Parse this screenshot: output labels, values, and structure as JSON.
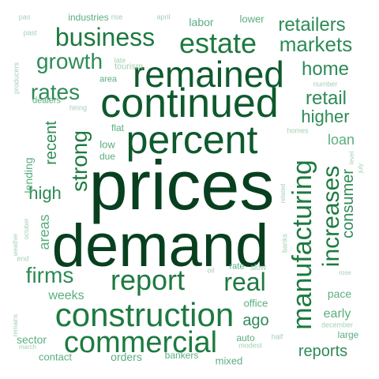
{
  "palette": {
    "darkest": "#08401f",
    "dark": "#0e5a2d",
    "mid": "#1d7a40",
    "medium": "#2e8b57",
    "light": "#5aae7f",
    "pale": "#a3d0b4"
  },
  "words": [
    {
      "text": "prices",
      "color": "darkest",
      "rot": 0
    },
    {
      "text": "demand",
      "color": "darkest",
      "rot": 0
    },
    {
      "text": "continued",
      "color": "dark",
      "rot": 0
    },
    {
      "text": "percent",
      "color": "dark",
      "rot": 0
    },
    {
      "text": "remained",
      "color": "dark",
      "rot": 0
    },
    {
      "text": "construction",
      "color": "mid",
      "rot": 0
    },
    {
      "text": "commercial",
      "color": "mid",
      "rot": 0
    },
    {
      "text": "manufacturing",
      "color": "mid",
      "rot": -90
    },
    {
      "text": "report",
      "color": "mid",
      "rot": 0
    },
    {
      "text": "estate",
      "color": "mid",
      "rot": 0
    },
    {
      "text": "strong",
      "color": "mid",
      "rot": -90
    },
    {
      "text": "business",
      "color": "mid",
      "rot": 0
    },
    {
      "text": "increases",
      "color": "mid",
      "rot": -90
    },
    {
      "text": "real",
      "color": "mid",
      "rot": 0
    },
    {
      "text": "growth",
      "color": "medium",
      "rot": 0
    },
    {
      "text": "firms",
      "color": "medium",
      "rot": 0
    },
    {
      "text": "rates",
      "color": "medium",
      "rot": 0
    },
    {
      "text": "markets",
      "color": "medium",
      "rot": 0
    },
    {
      "text": "retailers",
      "color": "medium",
      "rot": 0
    },
    {
      "text": "home",
      "color": "medium",
      "rot": 0
    },
    {
      "text": "retail",
      "color": "medium",
      "rot": 0
    },
    {
      "text": "higher",
      "color": "medium",
      "rot": 0
    },
    {
      "text": "consumer",
      "color": "medium",
      "rot": -90
    },
    {
      "text": "recent",
      "color": "medium",
      "rot": -90
    },
    {
      "text": "high",
      "color": "medium",
      "rot": 0
    },
    {
      "text": "reports",
      "color": "medium",
      "rot": 0
    },
    {
      "text": "areas",
      "color": "light",
      "rot": -90
    },
    {
      "text": "ago",
      "color": "medium",
      "rot": 0
    },
    {
      "text": "loan",
      "color": "light",
      "rot": 0
    },
    {
      "text": "weeks",
      "color": "light",
      "rot": 0
    },
    {
      "text": "early",
      "color": "light",
      "rot": 0
    },
    {
      "text": "pace",
      "color": "light",
      "rot": 0
    },
    {
      "text": "lending",
      "color": "light",
      "rot": -90
    },
    {
      "text": "sector",
      "color": "light",
      "rot": 0
    },
    {
      "text": "contact",
      "color": "light",
      "rot": 0
    },
    {
      "text": "orders",
      "color": "light",
      "rot": 0
    },
    {
      "text": "labor",
      "color": "light",
      "rot": 0
    },
    {
      "text": "office",
      "color": "light",
      "rot": 0
    },
    {
      "text": "bankers",
      "color": "light",
      "rot": 0
    },
    {
      "text": "mixed",
      "color": "light",
      "rot": 0
    },
    {
      "text": "low",
      "color": "light",
      "rot": 0
    },
    {
      "text": "due",
      "color": "light",
      "rot": 0
    },
    {
      "text": "flat",
      "color": "light",
      "rot": 0
    },
    {
      "text": "large",
      "color": "light",
      "rot": 0
    },
    {
      "text": "auto",
      "color": "light",
      "rot": 0
    },
    {
      "text": "lower",
      "color": "light",
      "rot": 0
    },
    {
      "text": "industries",
      "color": "light",
      "rot": 0
    },
    {
      "text": "area",
      "color": "light",
      "rot": 0
    },
    {
      "text": "dealers",
      "color": "light",
      "rot": 0
    },
    {
      "text": "rate",
      "color": "light",
      "rot": 0
    },
    {
      "text": "slow",
      "color": "pale",
      "rot": 0
    },
    {
      "text": "modest",
      "color": "pale",
      "rot": 0
    },
    {
      "text": "half",
      "color": "pale",
      "rot": 0
    },
    {
      "text": "banks",
      "color": "pale",
      "rot": -90
    },
    {
      "text": "tourism",
      "color": "pale",
      "rot": 0
    },
    {
      "text": "late",
      "color": "pale",
      "rot": 0
    },
    {
      "text": "hiring",
      "color": "pale",
      "rot": 0
    },
    {
      "text": "number",
      "color": "pale",
      "rot": 0
    },
    {
      "text": "homes",
      "color": "pale",
      "rot": 0
    },
    {
      "text": "level",
      "color": "pale",
      "rot": -90
    },
    {
      "text": "july",
      "color": "pale",
      "rot": -90
    },
    {
      "text": "related",
      "color": "pale",
      "rot": -90
    },
    {
      "text": "rose",
      "color": "pale",
      "rot": 0
    },
    {
      "text": "december",
      "color": "pale",
      "rot": 0
    },
    {
      "text": "october",
      "color": "pale",
      "rot": -90
    },
    {
      "text": "weather",
      "color": "pale",
      "rot": -90
    },
    {
      "text": "end",
      "color": "pale",
      "rot": 0
    },
    {
      "text": "remains",
      "color": "pale",
      "rot": -90
    },
    {
      "text": "march",
      "color": "pale",
      "rot": 0
    },
    {
      "text": "producers",
      "color": "pale",
      "rot": -90
    },
    {
      "text": "past",
      "color": "pale",
      "rot": 0
    },
    {
      "text": "pas",
      "color": "pale",
      "rot": 0
    },
    {
      "text": "rise",
      "color": "pale",
      "rot": 0
    },
    {
      "text": "april",
      "color": "pale",
      "rot": 0
    },
    {
      "text": "oil",
      "color": "pale",
      "rot": 0
    }
  ]
}
